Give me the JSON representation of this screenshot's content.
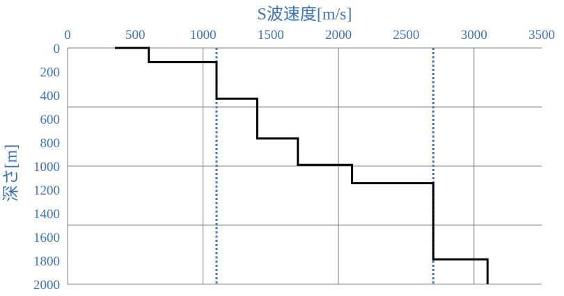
{
  "chart_data": {
    "type": "line",
    "xlabel": "S波速度[m/s]",
    "ylabel": "深さ[m]",
    "xlim": [
      0,
      3500
    ],
    "ylim": [
      0,
      2000
    ],
    "x_axis_position": "top",
    "y_axis_inverted": true,
    "x_ticks": [
      0,
      500,
      1000,
      1500,
      2000,
      2500,
      3000,
      3500
    ],
    "y_ticks": [
      0,
      200,
      400,
      600,
      800,
      1000,
      1200,
      1400,
      1600,
      1800,
      2000
    ],
    "x_gridlines": [
      0,
      1000,
      2000,
      3000
    ],
    "y_gridlines": [
      0,
      500,
      1000,
      1500,
      2000
    ],
    "series": [
      {
        "style": "step",
        "color": "#000000",
        "points": [
          [
            350,
            0
          ],
          [
            600,
            0
          ],
          [
            600,
            120
          ],
          [
            1100,
            120
          ],
          [
            1100,
            430
          ],
          [
            1400,
            430
          ],
          [
            1400,
            765
          ],
          [
            1700,
            765
          ],
          [
            1700,
            990
          ],
          [
            2100,
            990
          ],
          [
            2100,
            1145
          ],
          [
            2700,
            1145
          ],
          [
            2700,
            1790
          ],
          [
            3100,
            1790
          ],
          [
            3100,
            2000
          ]
        ]
      }
    ],
    "reference_lines": [
      {
        "x": 1100,
        "color": "#3f74d0",
        "style": "dotted"
      },
      {
        "x": 2700,
        "color": "#3f74d0",
        "style": "dotted"
      }
    ],
    "colors": {
      "tick_text": "#3f74b8",
      "grid": "#808080",
      "line": "#000000",
      "reference": "#3f74d0"
    }
  }
}
